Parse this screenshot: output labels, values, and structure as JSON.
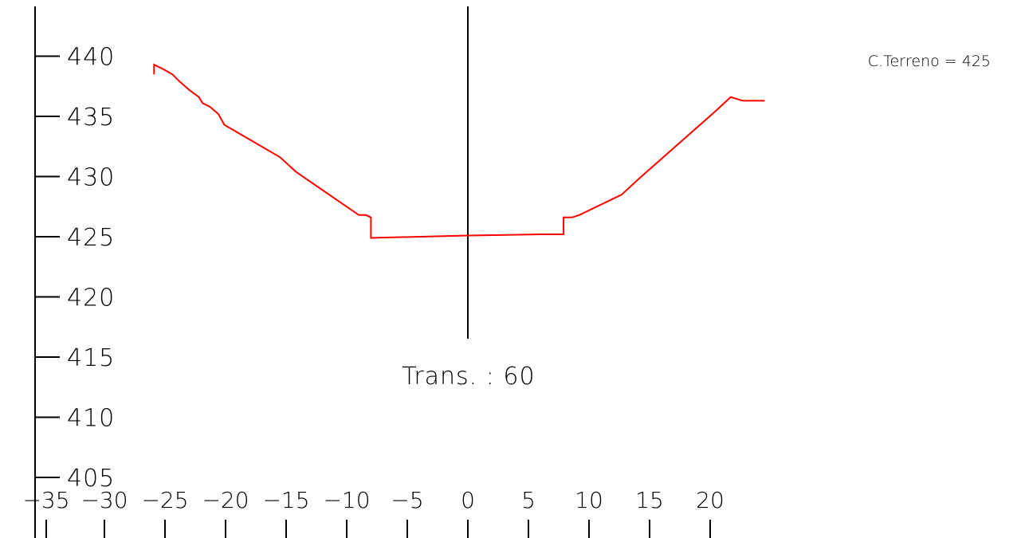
{
  "chart_data": {
    "type": "line",
    "title": "",
    "xlabel": "",
    "ylabel": "",
    "xlim": [
      -36,
      24.5
    ],
    "ylim": [
      402,
      444
    ],
    "x_ticks": [
      -35,
      -30,
      -25,
      -20,
      -15,
      -10,
      -5,
      0,
      5,
      10,
      15,
      20
    ],
    "x_tick_labels": [
      "−35",
      "−30",
      "−25",
      "−20",
      "−15",
      "−10",
      "−5",
      "0",
      "5",
      "10",
      "15",
      "20"
    ],
    "y_ticks": [
      405,
      410,
      415,
      420,
      425,
      430,
      435,
      440
    ],
    "y_tick_labels": [
      "405",
      "410",
      "415",
      "420",
      "425",
      "430",
      "435",
      "440"
    ],
    "grid": false,
    "series": [
      {
        "color": "#ff0000",
        "x": [
          -25.9,
          -25.9,
          -25.1,
          -24.4,
          -23.8,
          -23.0,
          -22.2,
          -21.9,
          -21.3,
          -20.6,
          -20.1,
          -15.5,
          -14.2,
          -9.0,
          -8.4,
          -8.0,
          -8.0,
          0.0,
          6.0,
          7.9,
          7.9,
          8.6,
          9.2,
          12.7,
          14.1,
          20.4,
          21.7,
          22.7,
          24.5
        ],
        "y": [
          438.5,
          439.3,
          438.9,
          438.5,
          437.9,
          437.2,
          436.6,
          436.1,
          435.8,
          435.2,
          434.3,
          431.6,
          430.4,
          426.8,
          426.8,
          426.6,
          424.9,
          425.1,
          425.2,
          425.2,
          426.6,
          426.6,
          426.8,
          428.5,
          429.8,
          435.4,
          436.6,
          436.3,
          436.3
        ]
      }
    ],
    "center_line": {
      "x": 0,
      "y_from": 416,
      "y_to": 443
    },
    "annotations": {
      "section_label": "Trans. : 60",
      "terrain_label": "C.Terreno = 425"
    }
  }
}
